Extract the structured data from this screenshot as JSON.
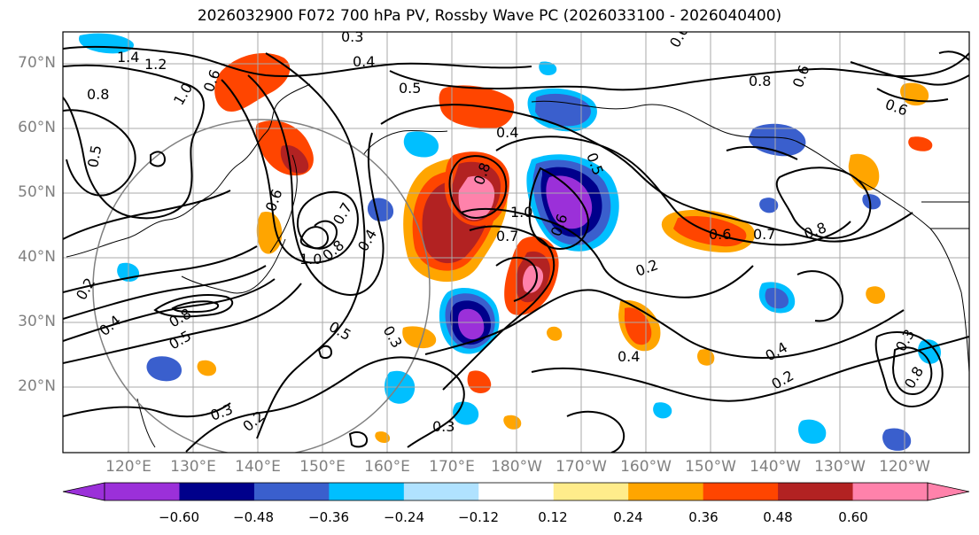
{
  "title": "2026032900 F072 700 hPa PV, Rossby Wave PC (2026033100 - 2026040400)",
  "lat_labels": [
    "70°N",
    "60°N",
    "50°N",
    "40°N",
    "30°N",
    "20°N"
  ],
  "lon_labels": [
    "120°E",
    "130°E",
    "140°E",
    "150°E",
    "160°E",
    "170°E",
    "180°W",
    "170°W",
    "160°W",
    "150°W",
    "140°W",
    "130°W",
    "120°W"
  ],
  "colorbar": {
    "colors": [
      "#9b30d9",
      "#00008b",
      "#3a5fcd",
      "#00bfff",
      "#b0e2ff",
      "#ffffff",
      "#ffec8b",
      "#ffa500",
      "#ff4500",
      "#b22222",
      "#ff82ab"
    ],
    "ticks": [
      "−0.60",
      "−0.48",
      "−0.36",
      "−0.24",
      "−0.12",
      "0.12",
      "0.24",
      "0.36",
      "0.48",
      "0.60"
    ]
  },
  "contour_labels": [
    "0.3",
    "0.4",
    "0.5",
    "0.6",
    "0.8",
    "1.4",
    "1.2",
    "1.0",
    "0.8",
    "0.6",
    "0.5",
    "0.4",
    "0.6",
    "0.8",
    "1.0",
    "0.7",
    "0.8",
    "1.0",
    "0.7",
    "0.6",
    "0.7",
    "0.8",
    "0.6",
    "0.5",
    "0.2",
    "0.4",
    "0.8",
    "0.5",
    "0.2",
    "0.3",
    "0.2",
    "0.3",
    "0.4",
    "0.4",
    "0.2",
    "0.3",
    "0.4",
    "0.6",
    "0.3",
    "0.6",
    "0.5",
    "0.8"
  ]
}
